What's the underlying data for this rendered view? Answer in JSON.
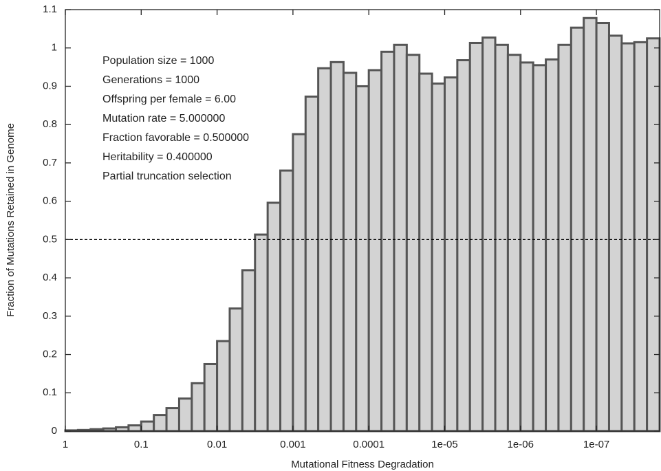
{
  "chart_data": {
    "type": "histogram",
    "xlabel": "Mutational Fitness Degradation",
    "ylabel": "Fraction of Mutations Retained in Genome",
    "annotations": [
      "Population size = 1000",
      "Generations = 1000",
      "Offspring per female = 6.00",
      "Mutation rate = 5.000000",
      "Fraction favorable = 0.500000",
      "Heritability = 0.400000",
      "Partial truncation selection"
    ],
    "bins": [
      1,
      0.6813,
      0.4642,
      0.3162,
      0.2154,
      0.1468,
      0.1,
      0.06813,
      0.04642,
      0.03162,
      0.02154,
      0.01468,
      0.01,
      0.006813,
      0.004642,
      0.003162,
      0.002154,
      0.001468,
      0.001,
      0.0006813,
      0.0004642,
      0.0003162,
      0.0002154,
      0.0001468,
      0.0001,
      6.813e-05,
      4.642e-05,
      3.162e-05,
      2.154e-05,
      1.468e-05,
      1e-05,
      6.813e-06,
      4.642e-06,
      3.162e-06,
      2.154e-06,
      1.468e-06,
      1e-06,
      6.813e-07,
      4.642e-07,
      3.162e-07,
      2.154e-07,
      1.468e-07,
      1e-07,
      6.813e-08,
      4.642e-08,
      3.162e-08,
      2.154e-08,
      1.468e-08
    ],
    "values": [
      0.002,
      0.003,
      0.005,
      0.007,
      0.01,
      0.015,
      0.025,
      0.042,
      0.06,
      0.085,
      0.125,
      0.175,
      0.235,
      0.32,
      0.42,
      0.513,
      0.596,
      0.68,
      0.775,
      0.873,
      0.947,
      0.963,
      0.935,
      0.9,
      0.942,
      0.99,
      1.008,
      0.982,
      0.933,
      0.907,
      0.923,
      0.968,
      1.013,
      1.027,
      1.008,
      0.982,
      0.962,
      0.955,
      0.97,
      1.008,
      1.053,
      1.078,
      1.065,
      1.032,
      1.012,
      1.015,
      1.025
    ],
    "color": "#d3d3d3",
    "edgecolor": "#555555",
    "xscale": "log",
    "xlim": [
      1,
      1.468e-08
    ],
    "xticks": [
      1,
      0.1,
      0.01,
      0.001,
      0.0001,
      {
        "value": 1e-05,
        "label": "1e-05"
      },
      {
        "value": 1e-06,
        "label": "1e-06"
      },
      {
        "value": 1e-07,
        "label": "1e-07"
      }
    ],
    "ylim": [
      0,
      1.1
    ],
    "yticks": [
      0,
      0.1,
      0.2,
      0.3,
      0.4,
      0.5,
      0.6,
      0.7,
      0.8,
      0.9,
      1,
      1.1
    ],
    "hline": 0.5
  }
}
